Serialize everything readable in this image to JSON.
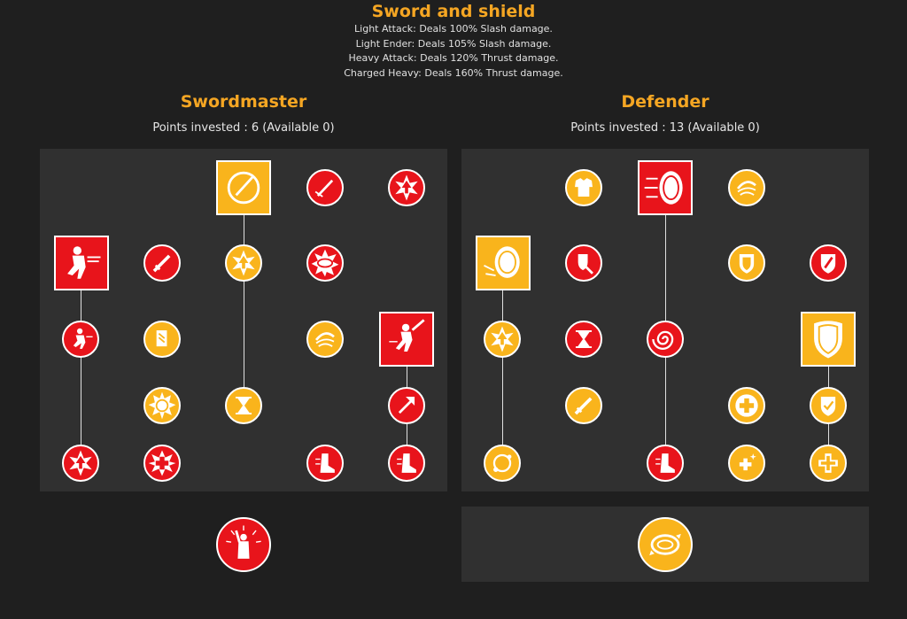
{
  "weapon": {
    "title": "Sword and shield",
    "attacks": [
      "Light Attack: Deals 100% Slash damage.",
      "Light Ender: Deals 105% Slash damage.",
      "Heavy Attack: Deals 120% Thrust damage.",
      "Charged Heavy: Deals 160% Thrust damage."
    ]
  },
  "colors": {
    "accent": "#f5a623",
    "active": "#f9b41c",
    "inactive": "#e8141b",
    "panel": "#303030",
    "background": "#1f1f1f"
  },
  "trees": [
    {
      "name": "Swordmaster",
      "points": "Points invested : 6 (Available 0)",
      "nodes": [
        {
          "id": "sm-slash-ring",
          "icon": "slash-ring-icon",
          "state": "active",
          "shape": "square"
        },
        {
          "id": "sm-sword-strike",
          "icon": "sword-strike-icon",
          "state": "inactive",
          "shape": "circle"
        },
        {
          "id": "sm-burst-up",
          "icon": "burst-arrow-icon",
          "state": "inactive",
          "shape": "circle"
        },
        {
          "id": "sm-charge-warrior",
          "icon": "charging-warrior-icon",
          "state": "inactive",
          "shape": "square"
        },
        {
          "id": "sm-sword",
          "icon": "sword-icon",
          "state": "inactive",
          "shape": "circle"
        },
        {
          "id": "sm-burst-arrow-gold",
          "icon": "burst-arrow-icon",
          "state": "active",
          "shape": "circle"
        },
        {
          "id": "sm-whirl",
          "icon": "whirl-icon",
          "state": "inactive",
          "shape": "circle"
        },
        {
          "id": "sm-runner",
          "icon": "runner-icon",
          "state": "inactive",
          "shape": "circle"
        },
        {
          "id": "sm-scroll",
          "icon": "scroll-icon",
          "state": "active",
          "shape": "circle"
        },
        {
          "id": "sm-swirl-gold",
          "icon": "swirl-icon",
          "state": "active",
          "shape": "circle"
        },
        {
          "id": "sm-leaping-warrior",
          "icon": "leaping-warrior-icon",
          "state": "inactive",
          "shape": "square"
        },
        {
          "id": "sm-cycle",
          "icon": "cycle-icon",
          "state": "active",
          "shape": "circle"
        },
        {
          "id": "sm-hourglass",
          "icon": "hourglass-icon",
          "state": "active",
          "shape": "circle"
        },
        {
          "id": "sm-arrow-up-right",
          "icon": "arrow-up-right-icon",
          "state": "inactive",
          "shape": "circle"
        },
        {
          "id": "sm-burst-bottom",
          "icon": "burst-arrow-icon",
          "state": "inactive",
          "shape": "circle"
        },
        {
          "id": "sm-cross",
          "icon": "cross-burst-icon",
          "state": "inactive",
          "shape": "circle"
        },
        {
          "id": "sm-boot-1",
          "icon": "boot-icon",
          "state": "inactive",
          "shape": "circle"
        },
        {
          "id": "sm-boot-2",
          "icon": "boot-icon",
          "state": "inactive",
          "shape": "circle"
        }
      ],
      "ultimate": {
        "icon": "rally-icon",
        "state": "inactive"
      }
    },
    {
      "name": "Defender",
      "points": "Points invested : 13 (Available 0)",
      "nodes": [
        {
          "id": "df-armor",
          "icon": "armor-icon",
          "state": "active",
          "shape": "circle"
        },
        {
          "id": "df-shield-charge",
          "icon": "shield-charge-icon",
          "state": "inactive",
          "shape": "square"
        },
        {
          "id": "df-swirl",
          "icon": "swirl-icon",
          "state": "active",
          "shape": "circle"
        },
        {
          "id": "df-shield-bash",
          "icon": "shield-bash-icon",
          "state": "active",
          "shape": "square"
        },
        {
          "id": "df-shield-tool",
          "icon": "shield-tool-icon",
          "state": "inactive",
          "shape": "circle"
        },
        {
          "id": "df-crest",
          "icon": "crest-icon",
          "state": "active",
          "shape": "circle"
        },
        {
          "id": "df-shield-slash",
          "icon": "shield-slash-icon",
          "state": "inactive",
          "shape": "circle"
        },
        {
          "id": "df-burst-up",
          "icon": "burst-arrow-icon",
          "state": "active",
          "shape": "circle"
        },
        {
          "id": "df-hourglass",
          "icon": "hourglass-icon",
          "state": "inactive",
          "shape": "circle"
        },
        {
          "id": "df-vortex",
          "icon": "vortex-icon",
          "state": "inactive",
          "shape": "circle"
        },
        {
          "id": "df-big-shield",
          "icon": "shield-icon",
          "state": "active",
          "shape": "square"
        },
        {
          "id": "df-sword",
          "icon": "sword-icon",
          "state": "active",
          "shape": "circle"
        },
        {
          "id": "df-plus-white",
          "icon": "plus-icon",
          "state": "active",
          "shape": "circle"
        },
        {
          "id": "df-shield-check",
          "icon": "shield-check-icon",
          "state": "active",
          "shape": "circle"
        },
        {
          "id": "df-orbit",
          "icon": "orbit-icon",
          "state": "active",
          "shape": "circle"
        },
        {
          "id": "df-boot",
          "icon": "boot-icon",
          "state": "inactive",
          "shape": "circle"
        },
        {
          "id": "df-plus-sparkle",
          "icon": "plus-sparkle-icon",
          "state": "active",
          "shape": "circle"
        },
        {
          "id": "df-plus-gold",
          "icon": "plus-icon",
          "state": "active",
          "shape": "circle"
        }
      ],
      "ultimate": {
        "icon": "orbit-shield-icon",
        "state": "active"
      }
    }
  ]
}
